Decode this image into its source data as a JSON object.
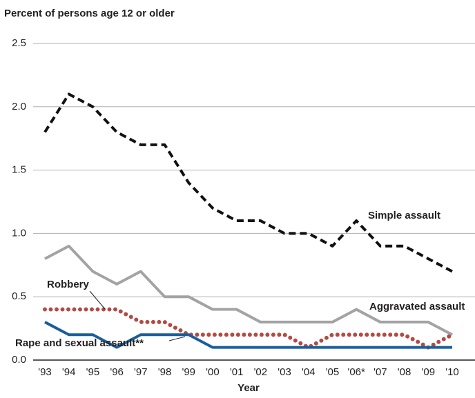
{
  "chart_data": {
    "type": "line",
    "y_label": "Percent of persons age 12 or older",
    "x_label": "Year",
    "categories": [
      "'93",
      "'94",
      "'95",
      "'96",
      "'97",
      "'98",
      "'99",
      "'00",
      "'01",
      "'02",
      "'03",
      "'04",
      "'05",
      "'06*",
      "'07",
      "'08",
      "'09",
      "'10"
    ],
    "series": [
      {
        "name": "Simple assault",
        "color": "#111111",
        "style": "dashed",
        "values": [
          1.8,
          2.1,
          2.0,
          1.8,
          1.7,
          1.7,
          1.4,
          1.2,
          1.1,
          1.1,
          1.0,
          1.0,
          0.9,
          1.1,
          0.9,
          0.9,
          0.8,
          0.7
        ]
      },
      {
        "name": "Aggravated assault",
        "color": "#a3a3a3",
        "style": "solid",
        "values": [
          0.8,
          0.9,
          0.7,
          0.6,
          0.7,
          0.5,
          0.5,
          0.4,
          0.4,
          0.3,
          0.3,
          0.3,
          0.3,
          0.4,
          0.3,
          0.3,
          0.3,
          0.2
        ]
      },
      {
        "name": "Robbery",
        "color": "#b24a44",
        "style": "dotted",
        "values": [
          0.4,
          0.4,
          0.4,
          0.4,
          0.3,
          0.3,
          0.2,
          0.2,
          0.2,
          0.2,
          0.2,
          0.1,
          0.2,
          0.2,
          0.2,
          0.2,
          0.1,
          0.2
        ]
      },
      {
        "name": "Rape and sexual assault**",
        "color": "#1a5e9c",
        "style": "solid",
        "values": [
          0.3,
          0.2,
          0.2,
          0.1,
          0.2,
          0.2,
          0.2,
          0.1,
          0.1,
          0.1,
          0.1,
          0.1,
          0.1,
          0.1,
          0.1,
          0.1,
          0.1,
          0.1
        ]
      }
    ],
    "ylim": [
      0,
      2.5
    ],
    "yticks": [
      {
        "value": 0,
        "label": "0.0"
      },
      0.5,
      {
        "value": 1,
        "label": "1.0"
      },
      1.5,
      {
        "value": 2,
        "label": "2.0"
      },
      2.5
    ],
    "grid": true
  }
}
